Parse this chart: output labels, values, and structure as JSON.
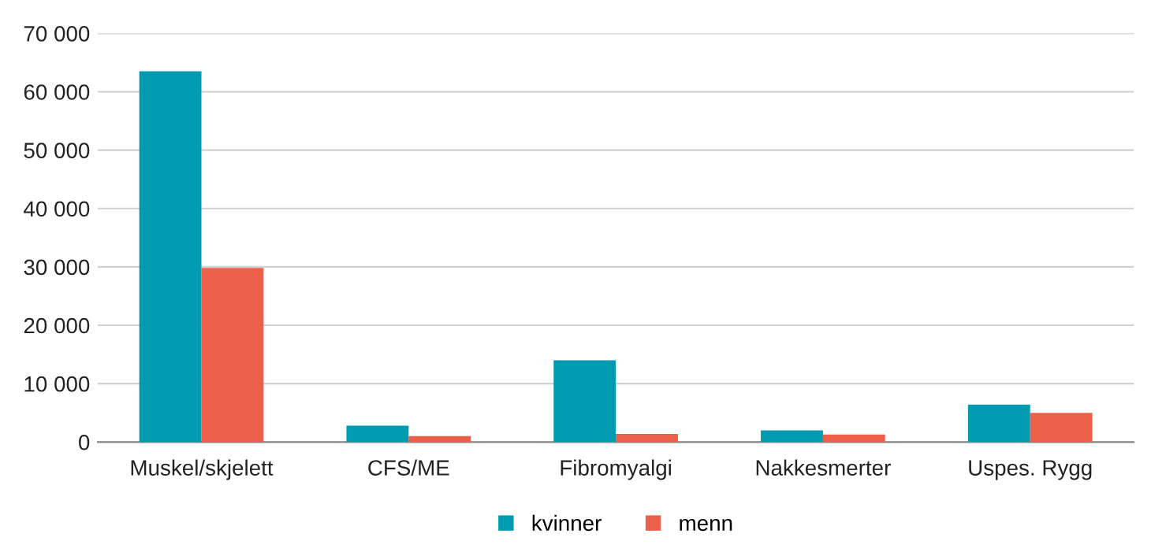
{
  "chart_data": {
    "type": "bar",
    "categories": [
      "Muskel/skjelett",
      "CFS/ME",
      "Fibromyalgi",
      "Nakkesmerter",
      "Uspes. Rygg"
    ],
    "series": [
      {
        "name": "kvinner",
        "color": "#009bb0",
        "values": [
          63500,
          2800,
          14000,
          2000,
          6400
        ]
      },
      {
        "name": "menn",
        "color": "#ec5f48",
        "values": [
          29800,
          1000,
          1400,
          1300,
          5000
        ]
      }
    ],
    "ylim": [
      0,
      70000
    ],
    "yticks": [
      {
        "value": 0,
        "label": "0"
      },
      {
        "value": 10000,
        "label": "10 000"
      },
      {
        "value": 20000,
        "label": "20 000"
      },
      {
        "value": 30000,
        "label": "30 000"
      },
      {
        "value": 40000,
        "label": "40 000"
      },
      {
        "value": 50000,
        "label": "50 000"
      },
      {
        "value": 60000,
        "label": "60 000"
      },
      {
        "value": 70000,
        "label": "70 000"
      }
    ],
    "grid": "y",
    "legend": "bottom"
  }
}
